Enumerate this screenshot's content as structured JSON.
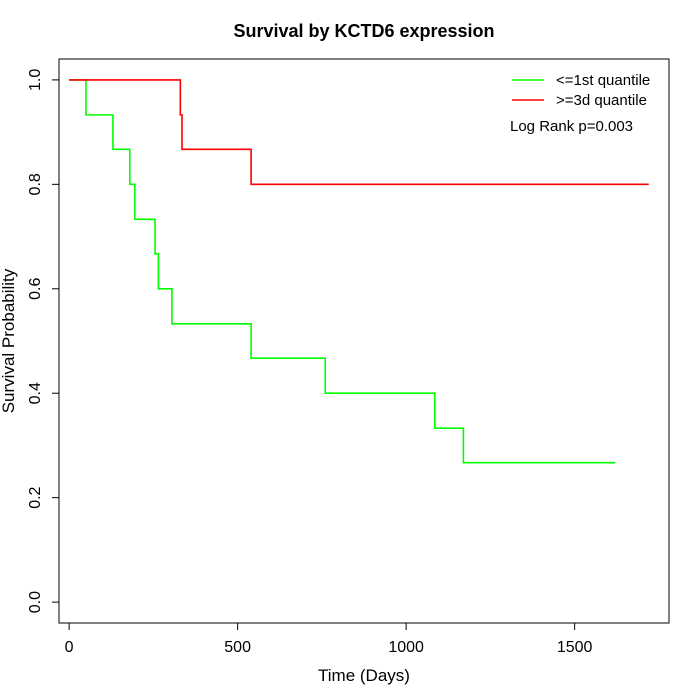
{
  "chart_data": {
    "type": "line",
    "title": "Survival by KCTD6 expression",
    "xlabel": "Time (Days)",
    "ylabel": "Survival Probability",
    "xlim": [
      -30,
      1780
    ],
    "ylim": [
      -0.04,
      1.04
    ],
    "x_ticks": [
      0,
      500,
      1000,
      1500
    ],
    "y_ticks": [
      0.0,
      0.2,
      0.4,
      0.6,
      0.8,
      1.0
    ],
    "x_tick_labels": [
      "0",
      "500",
      "1000",
      "1500"
    ],
    "y_tick_labels": [
      "0.0",
      "0.2",
      "0.4",
      "0.6",
      "0.8",
      "1.0"
    ],
    "grid": false,
    "legend_position": "top-right",
    "series": [
      {
        "name": "<=1st quantile",
        "color": "#00ff00",
        "x": [
          0,
          50,
          130,
          180,
          185,
          195,
          255,
          260,
          265,
          305,
          540,
          760,
          1085,
          1170,
          1620
        ],
        "y": [
          1.0,
          0.933,
          0.867,
          0.8,
          0.8,
          0.733,
          0.667,
          0.667,
          0.6,
          0.533,
          0.467,
          0.4,
          0.333,
          0.267,
          0.267
        ]
      },
      {
        "name": ">=3d quantile",
        "color": "#ff0000",
        "x": [
          0,
          330,
          335,
          540,
          1720
        ],
        "y": [
          1.0,
          0.933,
          0.867,
          0.8,
          0.8
        ]
      }
    ],
    "annotations": [
      "Log Rank p=0.003"
    ]
  }
}
